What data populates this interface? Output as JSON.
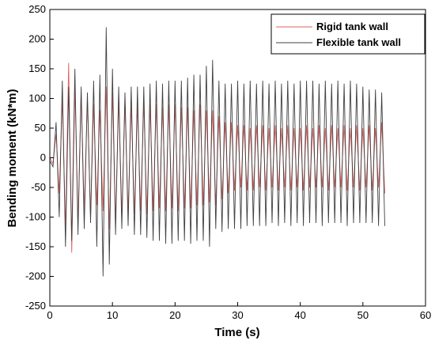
{
  "chart_data": {
    "type": "line",
    "title": "",
    "xlabel": "Time (s)",
    "ylabel": "Bending moment (kN*m)",
    "xlim": [
      0,
      60
    ],
    "ylim": [
      -250,
      250
    ],
    "xticks": [
      0,
      10,
      20,
      30,
      40,
      50,
      60
    ],
    "yticks": [
      -250,
      -200,
      -150,
      -100,
      -50,
      0,
      50,
      100,
      150,
      200,
      250
    ],
    "grid": false,
    "legend_position": "top-right",
    "series": [
      {
        "name": "Rigid tank wall",
        "color": "#e06060",
        "x": [
          0,
          0.5,
          1.0,
          1.5,
          2.0,
          2.5,
          3.0,
          3.5,
          4.0,
          4.5,
          5.0,
          5.5,
          6.0,
          6.5,
          7.0,
          7.5,
          8.0,
          8.5,
          9.0,
          9.5,
          10.0,
          10.5,
          11.0,
          11.5,
          12.0,
          12.5,
          13.0,
          13.5,
          14.0,
          14.5,
          15.0,
          15.5,
          16.0,
          16.5,
          17.0,
          17.5,
          18.0,
          18.5,
          19.0,
          19.5,
          20.0,
          20.5,
          21.0,
          21.5,
          22.0,
          22.5,
          23.0,
          23.5,
          24.0,
          24.5,
          25.0,
          25.5,
          26.0,
          26.5,
          27.0,
          27.5,
          28.0,
          28.5,
          29.0,
          29.5,
          30.0,
          30.5,
          31.0,
          31.5,
          32.0,
          32.5,
          33.0,
          33.5,
          34.0,
          34.5,
          35.0,
          35.5,
          36.0,
          36.5,
          37.0,
          37.5,
          38.0,
          38.5,
          39.0,
          39.5,
          40.0,
          40.5,
          41.0,
          41.5,
          42.0,
          42.5,
          43.0,
          43.5,
          44.0,
          44.5,
          45.0,
          45.5,
          46.0,
          46.5,
          47.0,
          47.5,
          48.0,
          48.5,
          49.0,
          49.5,
          50.0,
          50.5,
          51.0,
          51.5,
          52.0,
          52.5,
          53.0,
          53.5
        ],
        "y": [
          0,
          -10,
          40,
          -60,
          100,
          -120,
          160,
          -160,
          120,
          -110,
          110,
          -90,
          100,
          -100,
          90,
          -80,
          80,
          -90,
          120,
          -120,
          110,
          -110,
          100,
          -100,
          95,
          -95,
          90,
          -95,
          90,
          -90,
          95,
          -95,
          90,
          -90,
          90,
          -85,
          85,
          -90,
          90,
          -85,
          90,
          -90,
          85,
          -85,
          85,
          -85,
          80,
          -80,
          90,
          -80,
          80,
          -75,
          80,
          -80,
          70,
          -70,
          60,
          -60,
          60,
          -55,
          55,
          -50,
          55,
          -55,
          50,
          -55,
          55,
          -50,
          55,
          -55,
          50,
          -50,
          55,
          -55,
          50,
          -50,
          55,
          -55,
          50,
          -50,
          50,
          -55,
          55,
          -50,
          50,
          -50,
          55,
          -50,
          50,
          -55,
          55,
          -50,
          50,
          -50,
          55,
          -55,
          50,
          -50,
          55,
          -55,
          50,
          -50,
          55,
          -55,
          50,
          -50,
          60,
          -60
        ]
      },
      {
        "name": "Flexible tank wall",
        "color": "#404040",
        "x": [
          0,
          0.5,
          1.0,
          1.5,
          2.0,
          2.5,
          3.0,
          3.5,
          4.0,
          4.5,
          5.0,
          5.5,
          6.0,
          6.5,
          7.0,
          7.5,
          8.0,
          8.5,
          9.0,
          9.5,
          10.0,
          10.5,
          11.0,
          11.5,
          12.0,
          12.5,
          13.0,
          13.5,
          14.0,
          14.5,
          15.0,
          15.5,
          16.0,
          16.5,
          17.0,
          17.5,
          18.0,
          18.5,
          19.0,
          19.5,
          20.0,
          20.5,
          21.0,
          21.5,
          22.0,
          22.5,
          23.0,
          23.5,
          24.0,
          24.5,
          25.0,
          25.5,
          26.0,
          26.5,
          27.0,
          27.5,
          28.0,
          28.5,
          29.0,
          29.5,
          30.0,
          30.5,
          31.0,
          31.5,
          32.0,
          32.5,
          33.0,
          33.5,
          34.0,
          34.5,
          35.0,
          35.5,
          36.0,
          36.5,
          37.0,
          37.5,
          38.0,
          38.5,
          39.0,
          39.5,
          40.0,
          40.5,
          41.0,
          41.5,
          42.0,
          42.5,
          43.0,
          43.5,
          44.0,
          44.5,
          45.0,
          45.5,
          46.0,
          46.5,
          47.0,
          47.5,
          48.0,
          48.5,
          49.0,
          49.5,
          50.0,
          50.5,
          51.0,
          51.5,
          52.0,
          52.5,
          53.0,
          53.5
        ],
        "y": [
          -5,
          -15,
          60,
          -100,
          130,
          -150,
          120,
          -140,
          150,
          -130,
          120,
          -120,
          110,
          -110,
          130,
          -150,
          140,
          -200,
          220,
          -180,
          150,
          -130,
          120,
          -120,
          110,
          -115,
          120,
          -130,
          120,
          -130,
          120,
          -135,
          125,
          -140,
          130,
          -140,
          125,
          -145,
          130,
          -145,
          130,
          -140,
          130,
          -140,
          135,
          -145,
          140,
          -140,
          140,
          -140,
          155,
          -150,
          165,
          -120,
          130,
          -125,
          125,
          -120,
          125,
          -120,
          130,
          -120,
          125,
          -115,
          130,
          -115,
          125,
          -115,
          130,
          -115,
          125,
          -110,
          130,
          -115,
          125,
          -110,
          130,
          -115,
          125,
          -110,
          130,
          -115,
          130,
          -110,
          130,
          -110,
          125,
          -115,
          130,
          -110,
          125,
          -110,
          130,
          -110,
          125,
          -115,
          130,
          -110,
          125,
          -110,
          120,
          -110,
          115,
          -110,
          115,
          -115,
          110,
          -115
        ]
      }
    ]
  }
}
